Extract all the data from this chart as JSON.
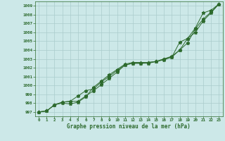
{
  "x": [
    0,
    1,
    2,
    3,
    4,
    5,
    6,
    7,
    8,
    9,
    10,
    11,
    12,
    13,
    14,
    15,
    16,
    17,
    18,
    19,
    20,
    21,
    22,
    23
  ],
  "line1": [
    997.0,
    997.1,
    997.8,
    998.1,
    998.2,
    998.2,
    998.8,
    999.4,
    1000.1,
    1000.8,
    1001.5,
    1002.3,
    1002.5,
    1002.5,
    1002.6,
    1002.7,
    1003.0,
    1003.2,
    1004.0,
    1005.3,
    1006.5,
    1008.2,
    1008.5,
    1009.2
  ],
  "line2": [
    997.0,
    997.1,
    997.8,
    998.0,
    997.9,
    998.1,
    998.7,
    999.8,
    1000.5,
    1001.2,
    1001.8,
    1002.4,
    1002.6,
    1002.6,
    1002.6,
    1002.7,
    1002.9,
    1003.2,
    1004.9,
    1005.3,
    1006.0,
    1007.3,
    1008.2,
    1009.2
  ],
  "line3": [
    997.0,
    997.1,
    997.8,
    998.1,
    998.2,
    998.8,
    999.4,
    999.6,
    1000.4,
    1001.0,
    1001.7,
    1002.3,
    1002.5,
    1002.5,
    1002.5,
    1002.7,
    1003.0,
    1003.3,
    1004.0,
    1004.8,
    1006.4,
    1007.5,
    1008.3,
    1009.2
  ],
  "line_color": "#2d6a2d",
  "bg_color": "#cce8e8",
  "grid_color": "#aacccc",
  "xlabel": "Graphe pression niveau de la mer (hPa)",
  "ylim": [
    996.5,
    1009.5
  ],
  "xlim": [
    -0.5,
    23.5
  ],
  "yticks": [
    997,
    998,
    999,
    1000,
    1001,
    1002,
    1003,
    1004,
    1005,
    1006,
    1007,
    1008,
    1009
  ],
  "xticks": [
    0,
    1,
    2,
    3,
    4,
    5,
    6,
    7,
    8,
    9,
    10,
    11,
    12,
    13,
    14,
    15,
    16,
    17,
    18,
    19,
    20,
    21,
    22,
    23
  ],
  "xtick_labels": [
    "0",
    "1",
    "2",
    "3",
    "4",
    "5",
    "6",
    "7",
    "8",
    "9",
    "10",
    "11",
    "12",
    "13",
    "14",
    "15",
    "16",
    "17",
    "18",
    "19",
    "20",
    "21",
    "22",
    "23"
  ]
}
